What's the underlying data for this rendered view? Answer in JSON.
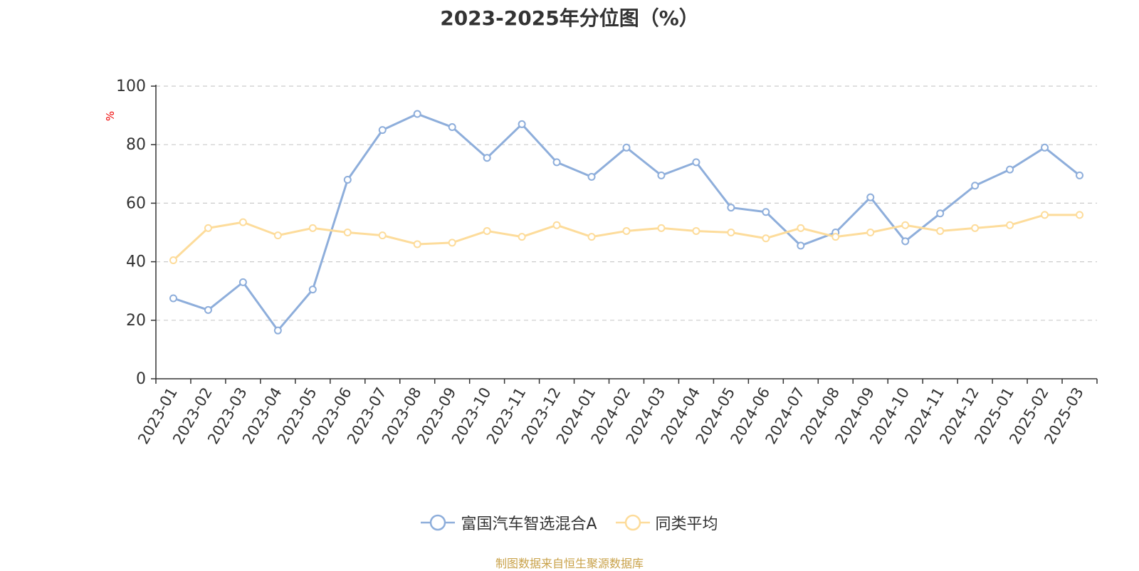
{
  "chart_data": {
    "type": "line",
    "title": "2023-2025年分位图（%）",
    "ylabel": "%",
    "ylim": [
      0,
      100
    ],
    "yticks": [
      0,
      20,
      40,
      60,
      80,
      100
    ],
    "grid": true,
    "legend_position": "bottom-center",
    "categories": [
      "2023-01",
      "2023-02",
      "2023-03",
      "2023-04",
      "2023-05",
      "2023-06",
      "2023-07",
      "2023-08",
      "2023-09",
      "2023-10",
      "2023-11",
      "2023-12",
      "2024-01",
      "2024-02",
      "2024-03",
      "2024-04",
      "2024-05",
      "2024-06",
      "2024-07",
      "2024-08",
      "2024-09",
      "2024-10",
      "2024-11",
      "2024-12",
      "2025-01",
      "2025-02",
      "2025-03"
    ],
    "series": [
      {
        "name": "富国汽车智选混合A",
        "color": "#8eaedb",
        "values": [
          27.5,
          23.5,
          33,
          16.5,
          30.5,
          68,
          85,
          90.5,
          86,
          75.5,
          87,
          74,
          69,
          79,
          69.5,
          74,
          58.5,
          57,
          45.5,
          50,
          62,
          47,
          56.5,
          66,
          71.5,
          79,
          69.5
        ]
      },
      {
        "name": "同类平均",
        "color": "#fddc9b",
        "values": [
          40.5,
          51.5,
          53.5,
          49,
          51.5,
          50,
          49,
          46,
          46.5,
          50.5,
          48.5,
          52.5,
          48.5,
          50.5,
          51.5,
          50.5,
          50,
          48,
          51.5,
          48.5,
          50,
          52.5,
          50.5,
          51.5,
          52.5,
          56,
          56
        ]
      }
    ],
    "source": "制图数据来自恒生聚源数据库"
  }
}
